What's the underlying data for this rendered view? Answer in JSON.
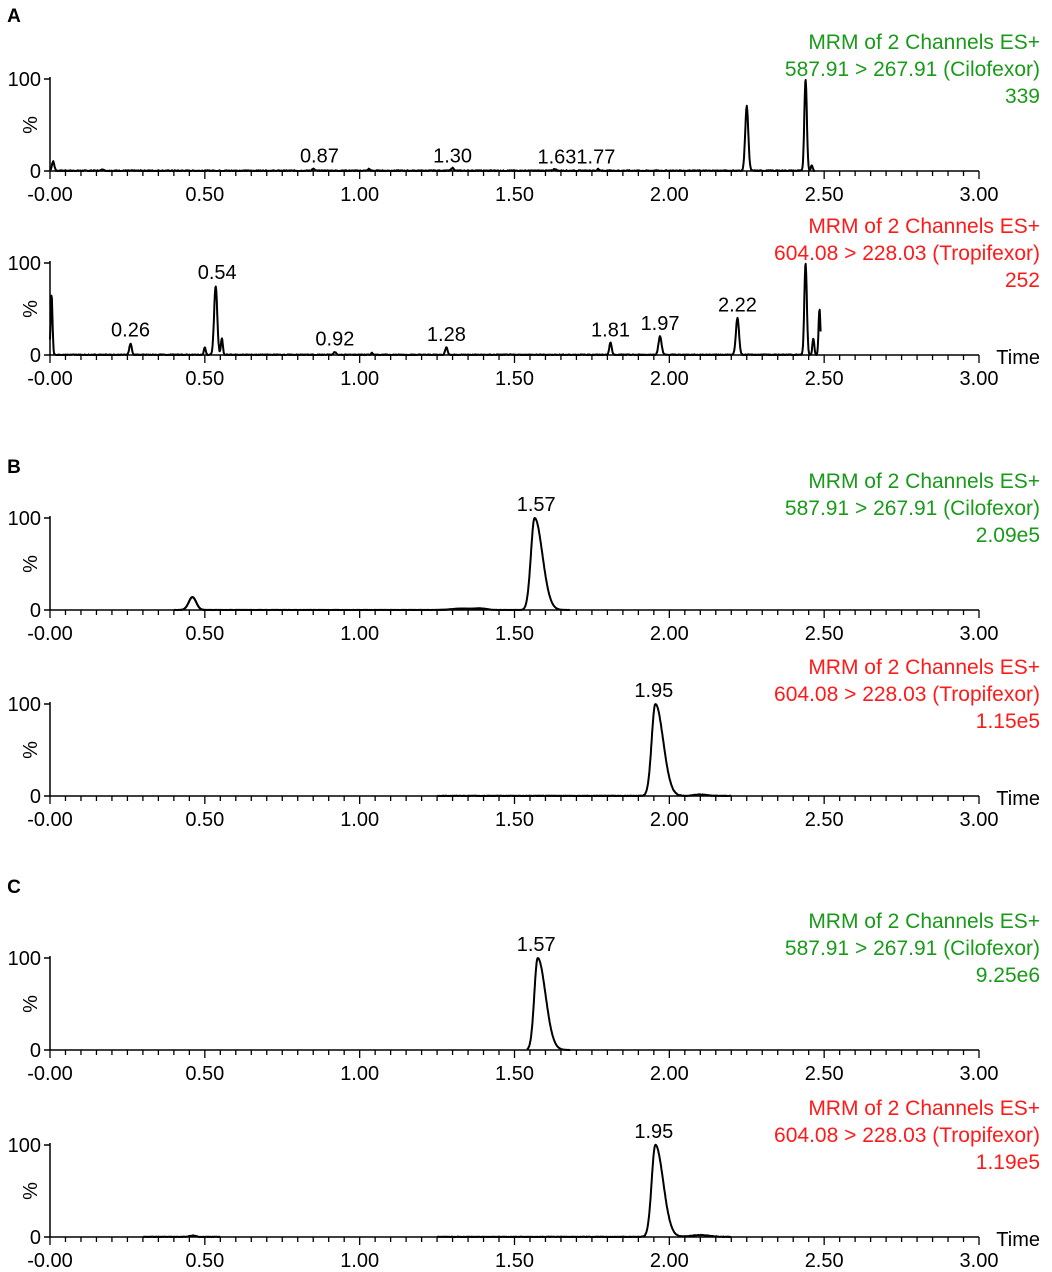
{
  "colors": {
    "green": "#1a9a1a",
    "red": "#ff1a1a",
    "trace": "#000000",
    "axis": "#000000"
  },
  "x_axis": {
    "ticks": [
      "-0.00",
      "0.50",
      "1.00",
      "1.50",
      "2.00",
      "2.50",
      "3.00"
    ],
    "label": "Time",
    "range": [
      0,
      3
    ]
  },
  "y_axis": {
    "ticks": [
      "0",
      "100"
    ],
    "label": "%",
    "range": [
      0,
      100
    ]
  },
  "chart_data": [
    {
      "type": "line",
      "panel": "A",
      "header": [
        "MRM of 2 Channels ES+",
        "587.91 > 267.91 (Cilofexor)",
        "339"
      ],
      "color": "green",
      "show_time_label": false,
      "peaks": [
        {
          "x": 0.01,
          "h": 10,
          "w": 0.004
        },
        {
          "x": 0.17,
          "h": 2,
          "w": 0.003
        },
        {
          "x": 0.85,
          "h": 2,
          "w": 0.004
        },
        {
          "x": 1.03,
          "h": 2,
          "w": 0.003
        },
        {
          "x": 1.3,
          "h": 3,
          "w": 0.004
        },
        {
          "x": 1.63,
          "h": 2,
          "w": 0.004
        },
        {
          "x": 1.77,
          "h": 2,
          "w": 0.003
        },
        {
          "x": 2.25,
          "h": 70,
          "w": 0.005
        },
        {
          "x": 2.44,
          "h": 100,
          "w": 0.004
        },
        {
          "x": 2.46,
          "h": 6,
          "w": 0.003
        }
      ],
      "noise": 1.2,
      "trace_range": [
        0.0,
        2.47
      ],
      "labels": [
        {
          "x": 0.87,
          "y": 5,
          "text": "0.87"
        },
        {
          "x": 1.3,
          "y": 5,
          "text": "1.30"
        },
        {
          "x": 1.7,
          "y": 4,
          "text": "1.631.77"
        }
      ]
    },
    {
      "type": "line",
      "panel": "A",
      "header": [
        "MRM of 2 Channels ES+",
        "604.08 > 228.03 (Tropifexor)",
        "252"
      ],
      "color": "red",
      "show_time_label": true,
      "peaks": [
        {
          "x": 0.005,
          "h": 65,
          "w": 0.003
        },
        {
          "x": 0.26,
          "h": 12,
          "w": 0.004
        },
        {
          "x": 0.5,
          "h": 8,
          "w": 0.003
        },
        {
          "x": 0.535,
          "h": 75,
          "w": 0.005
        },
        {
          "x": 0.555,
          "h": 18,
          "w": 0.003
        },
        {
          "x": 0.92,
          "h": 3,
          "w": 0.004
        },
        {
          "x": 1.04,
          "h": 2,
          "w": 0.003
        },
        {
          "x": 1.28,
          "h": 8,
          "w": 0.004
        },
        {
          "x": 1.81,
          "h": 13,
          "w": 0.004
        },
        {
          "x": 1.97,
          "h": 20,
          "w": 0.005
        },
        {
          "x": 2.22,
          "h": 40,
          "w": 0.005
        },
        {
          "x": 2.44,
          "h": 100,
          "w": 0.004
        },
        {
          "x": 2.465,
          "h": 18,
          "w": 0.003
        },
        {
          "x": 2.485,
          "h": 50,
          "w": 0.003
        }
      ],
      "noise": 1.0,
      "trace_range": [
        0.0,
        2.49
      ],
      "labels": [
        {
          "x": 0.26,
          "y": 16,
          "text": "0.26"
        },
        {
          "x": 0.54,
          "y": 78,
          "text": "0.54"
        },
        {
          "x": 0.92,
          "y": 6,
          "text": "0.92"
        },
        {
          "x": 1.28,
          "y": 11,
          "text": "1.28"
        },
        {
          "x": 1.81,
          "y": 16,
          "text": "1.81"
        },
        {
          "x": 1.97,
          "y": 23,
          "text": "1.97"
        },
        {
          "x": 2.22,
          "y": 43,
          "text": "2.22"
        }
      ]
    },
    {
      "type": "line",
      "panel": "B",
      "header": [
        "MRM of 2 Channels ES+",
        "587.91 > 267.91 (Cilofexor)",
        "2.09e5"
      ],
      "color": "green",
      "show_time_label": false,
      "peaks": [
        {
          "x": 0.46,
          "h": 14,
          "w": 0.012
        },
        {
          "x": 1.33,
          "h": 1.5,
          "w": 0.03
        },
        {
          "x": 1.39,
          "h": 1.5,
          "w": 0.02
        },
        {
          "x": 1.565,
          "h": 100,
          "w": 0.012,
          "tail": 0.025
        }
      ],
      "noise": 0.2,
      "trace_range": [
        0.42,
        1.68
      ],
      "extra_ranges": [
        [
          0.4,
          0.5
        ],
        [
          1.25,
          1.42
        ]
      ],
      "labels": [
        {
          "x": 1.57,
          "y": 103,
          "text": "1.57"
        }
      ]
    },
    {
      "type": "line",
      "panel": "B",
      "header": [
        "MRM of 2 Channels ES+",
        "604.08 > 228.03 (Tropifexor)",
        "1.15e5"
      ],
      "color": "red",
      "show_time_label": true,
      "peaks": [
        {
          "x": 1.955,
          "h": 100,
          "w": 0.012,
          "tail": 0.025
        },
        {
          "x": 0.46,
          "h": 1.5,
          "w": 0.01
        },
        {
          "x": 2.1,
          "h": 1.5,
          "w": 0.02
        }
      ],
      "noise": 0.6,
      "trace_range": [
        1.25,
        2.2
      ],
      "labels": [
        {
          "x": 1.95,
          "y": 103,
          "text": "1.95"
        }
      ]
    },
    {
      "type": "line",
      "panel": "C",
      "header": [
        "MRM of 2 Channels ES+",
        "587.91 > 267.91 (Cilofexor)",
        "9.25e6"
      ],
      "color": "green",
      "show_time_label": false,
      "peaks": [
        {
          "x": 1.575,
          "h": 100,
          "w": 0.011,
          "tail": 0.025
        }
      ],
      "noise": 0.1,
      "trace_range": [
        1.54,
        1.68
      ],
      "labels": [
        {
          "x": 1.57,
          "y": 103,
          "text": "1.57"
        }
      ]
    },
    {
      "type": "line",
      "panel": "C",
      "header": [
        "MRM of 2 Channels ES+",
        "604.08 > 228.03 (Tropifexor)",
        "1.19e5"
      ],
      "color": "red",
      "show_time_label": true,
      "peaks": [
        {
          "x": 1.955,
          "h": 100,
          "w": 0.012,
          "tail": 0.025
        },
        {
          "x": 2.1,
          "h": 2,
          "w": 0.03
        },
        {
          "x": 0.46,
          "h": 1.5,
          "w": 0.01
        }
      ],
      "noise": 0.6,
      "trace_range": [
        1.25,
        2.2
      ],
      "extra_ranges": [
        [
          0.3,
          0.55
        ]
      ],
      "labels": [
        {
          "x": 1.95,
          "y": 103,
          "text": "1.95"
        }
      ]
    }
  ],
  "panel_letters": [
    "A",
    "B",
    "C"
  ]
}
